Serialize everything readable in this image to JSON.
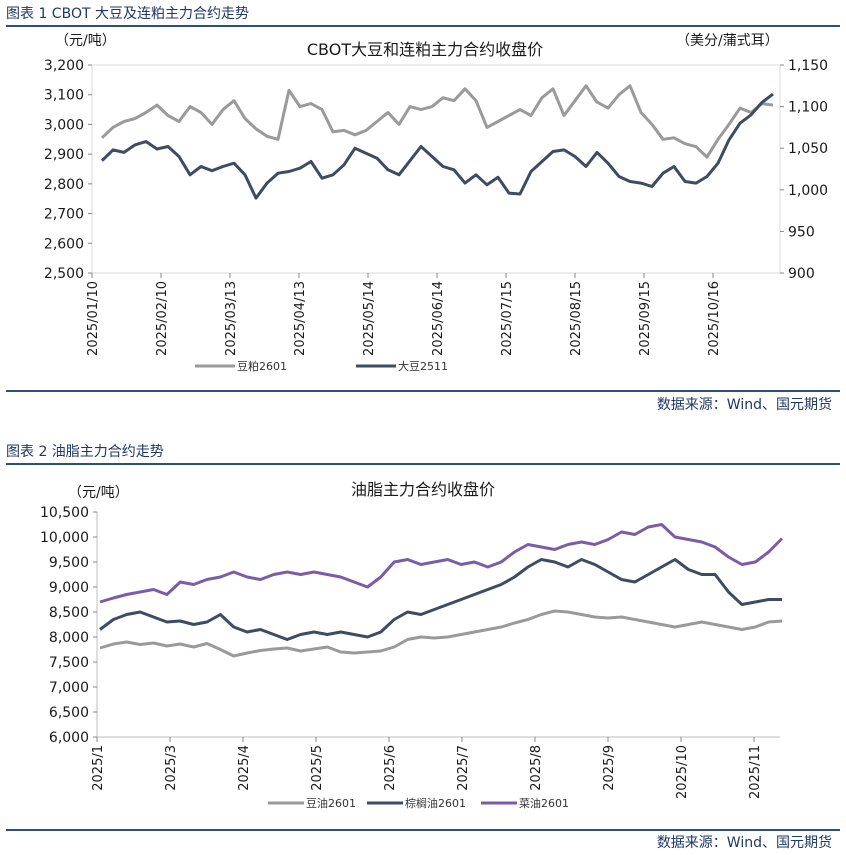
{
  "figure1": {
    "caption": "图表 1 CBOT 大豆及连粕主力合约走势",
    "source": "数据来源：Wind、国元期货"
  },
  "figure2": {
    "caption": "图表 2 油脂主力合约走势",
    "source": "数据来源：Wind、国元期货"
  },
  "chart_data": [
    {
      "type": "line",
      "title": "CBOT大豆和连粕主力合约收盘价",
      "ylabel_left": "（元/吨）",
      "ylabel_right": "（美分/蒲式耳）",
      "ylim_left": [
        2500,
        3200
      ],
      "yticks_left": [
        "2,500",
        "2,600",
        "2,700",
        "2,800",
        "2,900",
        "3,000",
        "3,100",
        "3,200"
      ],
      "ylim_right": [
        900,
        1150
      ],
      "yticks_right": [
        "900",
        "950",
        "1,000",
        "1,050",
        "1,100",
        "1,150"
      ],
      "x_ticks": [
        "2025/01/10",
        "2025/02/10",
        "2025/03/13",
        "2025/04/13",
        "2025/05/14",
        "2025/06/14",
        "2025/07/15",
        "2025/08/15",
        "2025/09/15",
        "2025/10/16"
      ],
      "legend_position": "bottom",
      "series": [
        {
          "name": "豆粕2601",
          "axis": "left",
          "color": "#9a9a9a",
          "values": [
            2955,
            2990,
            3010,
            3020,
            3040,
            3065,
            3030,
            3010,
            3060,
            3040,
            3000,
            3050,
            3080,
            3020,
            2985,
            2960,
            2950,
            3115,
            3060,
            3070,
            3050,
            2975,
            2980,
            2965,
            2980,
            3010,
            3040,
            3000,
            3060,
            3050,
            3060,
            3090,
            3080,
            3120,
            3080,
            2990,
            3010,
            3030,
            3050,
            3030,
            3090,
            3120,
            3030,
            3080,
            3130,
            3075,
            3055,
            3100,
            3130,
            3040,
            3000,
            2950,
            2955,
            2935,
            2925,
            2890,
            2950,
            3000,
            3055,
            3040,
            3070,
            3065
          ]
        },
        {
          "name": "大豆2511",
          "axis": "right",
          "color": "#3d4b63",
          "values": [
            1035,
            1048,
            1045,
            1054,
            1058,
            1049,
            1052,
            1040,
            1018,
            1028,
            1023,
            1028,
            1032,
            1018,
            990,
            1008,
            1020,
            1022,
            1026,
            1034,
            1014,
            1018,
            1030,
            1050,
            1044,
            1038,
            1024,
            1018,
            1035,
            1052,
            1040,
            1028,
            1024,
            1008,
            1018,
            1006,
            1015,
            996,
            995,
            1022,
            1034,
            1046,
            1048,
            1040,
            1028,
            1045,
            1032,
            1016,
            1010,
            1008,
            1004,
            1020,
            1028,
            1010,
            1008,
            1016,
            1032,
            1060,
            1080,
            1090,
            1105,
            1115
          ]
        }
      ]
    },
    {
      "type": "line",
      "title": "油脂主力合约收盘价",
      "ylabel": "（元/吨）",
      "ylim": [
        6000,
        10500
      ],
      "yticks": [
        "6,000",
        "6,500",
        "7,000",
        "7,500",
        "8,000",
        "8,500",
        "9,000",
        "9,500",
        "10,000",
        "10,500"
      ],
      "x_ticks": [
        "2025/1",
        "2025/3",
        "2025/4",
        "2025/5",
        "2025/6",
        "2025/7",
        "2025/8",
        "2025/9",
        "2025/10",
        "2025/11"
      ],
      "legend_position": "bottom",
      "series": [
        {
          "name": "豆油2601",
          "color": "#9a9a9a",
          "values": [
            7780,
            7860,
            7900,
            7850,
            7880,
            7820,
            7860,
            7800,
            7870,
            7750,
            7620,
            7680,
            7730,
            7760,
            7780,
            7720,
            7760,
            7800,
            7700,
            7680,
            7700,
            7720,
            7800,
            7950,
            8000,
            7980,
            8000,
            8050,
            8100,
            8150,
            8200,
            8280,
            8350,
            8450,
            8520,
            8500,
            8450,
            8400,
            8380,
            8400,
            8350,
            8300,
            8250,
            8200,
            8250,
            8300,
            8250,
            8200,
            8150,
            8200,
            8300,
            8320
          ]
        },
        {
          "name": "棕榈油2601",
          "color": "#3d4b63",
          "values": [
            8150,
            8350,
            8450,
            8500,
            8400,
            8300,
            8320,
            8250,
            8300,
            8450,
            8200,
            8100,
            8150,
            8050,
            7950,
            8050,
            8100,
            8050,
            8100,
            8050,
            8000,
            8100,
            8350,
            8500,
            8450,
            8550,
            8650,
            8750,
            8850,
            8950,
            9050,
            9200,
            9400,
            9550,
            9500,
            9400,
            9550,
            9450,
            9300,
            9150,
            9100,
            9250,
            9400,
            9550,
            9350,
            9250,
            9250,
            8900,
            8650,
            8700,
            8750,
            8750
          ]
        },
        {
          "name": "菜油2601",
          "color": "#7b5ca8",
          "values": [
            8700,
            8780,
            8850,
            8900,
            8950,
            8850,
            9100,
            9050,
            9150,
            9200,
            9300,
            9200,
            9150,
            9250,
            9300,
            9250,
            9300,
            9250,
            9200,
            9100,
            9000,
            9200,
            9500,
            9550,
            9450,
            9500,
            9550,
            9450,
            9500,
            9400,
            9500,
            9700,
            9850,
            9800,
            9750,
            9850,
            9900,
            9850,
            9950,
            10100,
            10050,
            10200,
            10250,
            10000,
            9950,
            9900,
            9800,
            9600,
            9450,
            9500,
            9700,
            9970
          ]
        }
      ]
    }
  ]
}
